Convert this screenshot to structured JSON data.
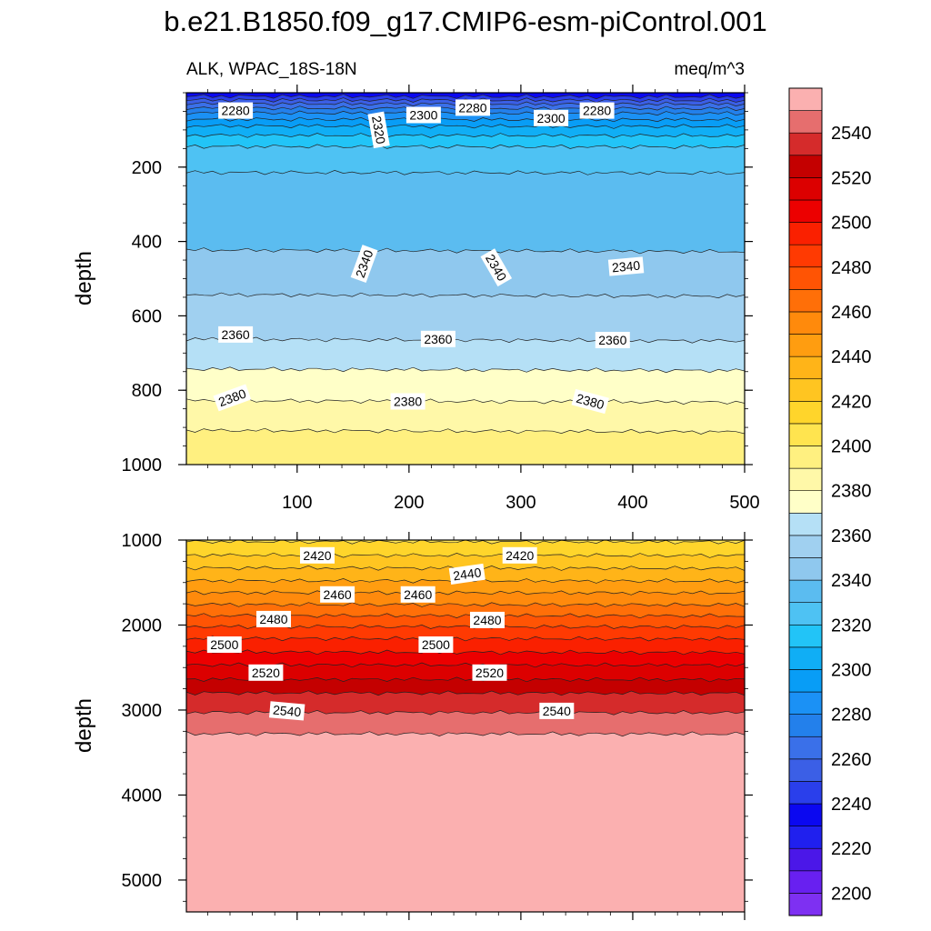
{
  "chart_data": {
    "type": "contour",
    "title": "b.e21.B1850.f09_g17.CMIP6-esm-piControl.001",
    "variable_label": "ALK, WPAC_18S-18N",
    "units": "meq/m^3",
    "panels": [
      {
        "name": "upper",
        "ylabel": "depth",
        "xlim": [
          1,
          500
        ],
        "ylim": [
          0,
          1000
        ],
        "x_ticks": [
          100,
          200,
          300,
          400,
          500
        ],
        "y_ticks": [
          200,
          400,
          600,
          800,
          1000
        ],
        "contour_depths": [
          {
            "value": 2240,
            "depth": 10
          },
          {
            "value": 2250,
            "depth": 20
          },
          {
            "value": 2260,
            "depth": 30
          },
          {
            "value": 2270,
            "depth": 42
          },
          {
            "value": 2280,
            "depth": 55
          },
          {
            "value": 2290,
            "depth": 72
          },
          {
            "value": 2300,
            "depth": 90
          },
          {
            "value": 2310,
            "depth": 115
          },
          {
            "value": 2320,
            "depth": 145
          },
          {
            "value": 2330,
            "depth": 215
          },
          {
            "value": 2340,
            "depth": 425
          },
          {
            "value": 2350,
            "depth": 545
          },
          {
            "value": 2360,
            "depth": 665
          },
          {
            "value": 2370,
            "depth": 745
          },
          {
            "value": 2380,
            "depth": 830
          },
          {
            "value": 2390,
            "depth": 910
          }
        ],
        "contour_labels": [
          {
            "text": "2280",
            "x": 45,
            "depth": 48,
            "angle": 0
          },
          {
            "text": "2320",
            "x": 173,
            "depth": 100,
            "angle": 80
          },
          {
            "text": "2300",
            "x": 213,
            "depth": 60,
            "angle": 0
          },
          {
            "text": "2280",
            "x": 257,
            "depth": 40,
            "angle": 0
          },
          {
            "text": "2300",
            "x": 327,
            "depth": 68,
            "angle": 0
          },
          {
            "text": "2280",
            "x": 368,
            "depth": 48,
            "angle": 0
          },
          {
            "text": "2340",
            "x": 160,
            "depth": 460,
            "angle": -70
          },
          {
            "text": "2340",
            "x": 278,
            "depth": 470,
            "angle": 60
          },
          {
            "text": "2340",
            "x": 394,
            "depth": 467,
            "angle": -5
          },
          {
            "text": "2360",
            "x": 45,
            "depth": 650,
            "angle": 0
          },
          {
            "text": "2360",
            "x": 226,
            "depth": 662,
            "angle": 0
          },
          {
            "text": "2360",
            "x": 382,
            "depth": 665,
            "angle": 0
          },
          {
            "text": "2380",
            "x": 42,
            "depth": 820,
            "angle": -20
          },
          {
            "text": "2380",
            "x": 199,
            "depth": 830,
            "angle": 0
          },
          {
            "text": "2380",
            "x": 362,
            "depth": 830,
            "angle": 15
          }
        ]
      },
      {
        "name": "lower",
        "ylabel": "depth",
        "xlim": [
          1,
          500
        ],
        "ylim": [
          1000,
          5375
        ],
        "y_ticks": [
          1000,
          2000,
          3000,
          4000,
          5000
        ],
        "contour_depths": [
          {
            "value": 2410,
            "depth": 1020
          },
          {
            "value": 2420,
            "depth": 1180
          },
          {
            "value": 2430,
            "depth": 1330
          },
          {
            "value": 2440,
            "depth": 1480
          },
          {
            "value": 2450,
            "depth": 1620
          },
          {
            "value": 2460,
            "depth": 1760
          },
          {
            "value": 2470,
            "depth": 1890
          },
          {
            "value": 2480,
            "depth": 2020
          },
          {
            "value": 2490,
            "depth": 2160
          },
          {
            "value": 2500,
            "depth": 2320
          },
          {
            "value": 2510,
            "depth": 2470
          },
          {
            "value": 2520,
            "depth": 2640
          },
          {
            "value": 2530,
            "depth": 2800
          },
          {
            "value": 2540,
            "depth": 3030
          },
          {
            "value": 2550,
            "depth": 3280
          }
        ],
        "contour_labels": [
          {
            "text": "2420",
            "x": 118,
            "depth": 1180,
            "angle": 0
          },
          {
            "text": "2420",
            "x": 299,
            "depth": 1180,
            "angle": 0
          },
          {
            "text": "2440",
            "x": 252,
            "depth": 1400,
            "angle": -8
          },
          {
            "text": "2460",
            "x": 136,
            "depth": 1640,
            "angle": 0
          },
          {
            "text": "2460",
            "x": 208,
            "depth": 1640,
            "angle": 0
          },
          {
            "text": "2480",
            "x": 79,
            "depth": 1930,
            "angle": 0
          },
          {
            "text": "2480",
            "x": 270,
            "depth": 1940,
            "angle": 0
          },
          {
            "text": "2500",
            "x": 35,
            "depth": 2230,
            "angle": 0
          },
          {
            "text": "2500",
            "x": 224,
            "depth": 2230,
            "angle": 0
          },
          {
            "text": "2520",
            "x": 72,
            "depth": 2560,
            "angle": 0
          },
          {
            "text": "2520",
            "x": 272,
            "depth": 2560,
            "angle": 0
          },
          {
            "text": "2540",
            "x": 91,
            "depth": 3010,
            "angle": 5
          },
          {
            "text": "2540",
            "x": 332,
            "depth": 3010,
            "angle": 0
          }
        ]
      }
    ],
    "colorbar": {
      "min": 2190,
      "step": 10,
      "colors": [
        "#7E30F2",
        "#6820F0",
        "#4B17E8",
        "#2020EE",
        "#0B08F0",
        "#2A3FEB",
        "#3B5FE6",
        "#3A70E9",
        "#2380EB",
        "#1B91F5",
        "#089DF6",
        "#10AEF5",
        "#22C4F7",
        "#4EC2F3",
        "#5BBCF0",
        "#8FC8EE",
        "#A0D0F0",
        "#B5E0F6",
        "#FFFFC8",
        "#FFF8A8",
        "#FFF080",
        "#FFE44F",
        "#FFD52B",
        "#FFC521",
        "#FFB418",
        "#FF9D10",
        "#FF8A0C",
        "#FF6F08",
        "#FF5404",
        "#FF3A02",
        "#FA2000",
        "#EC0000",
        "#DC0000",
        "#C40000",
        "#D52B2B",
        "#E66E6E",
        "#FBB0B0"
      ],
      "label_values": [
        "2200",
        "2220",
        "2240",
        "2260",
        "2280",
        "2300",
        "2320",
        "2340",
        "2360",
        "2380",
        "2400",
        "2420",
        "2440",
        "2460",
        "2480",
        "2500",
        "2520",
        "2540"
      ]
    }
  }
}
